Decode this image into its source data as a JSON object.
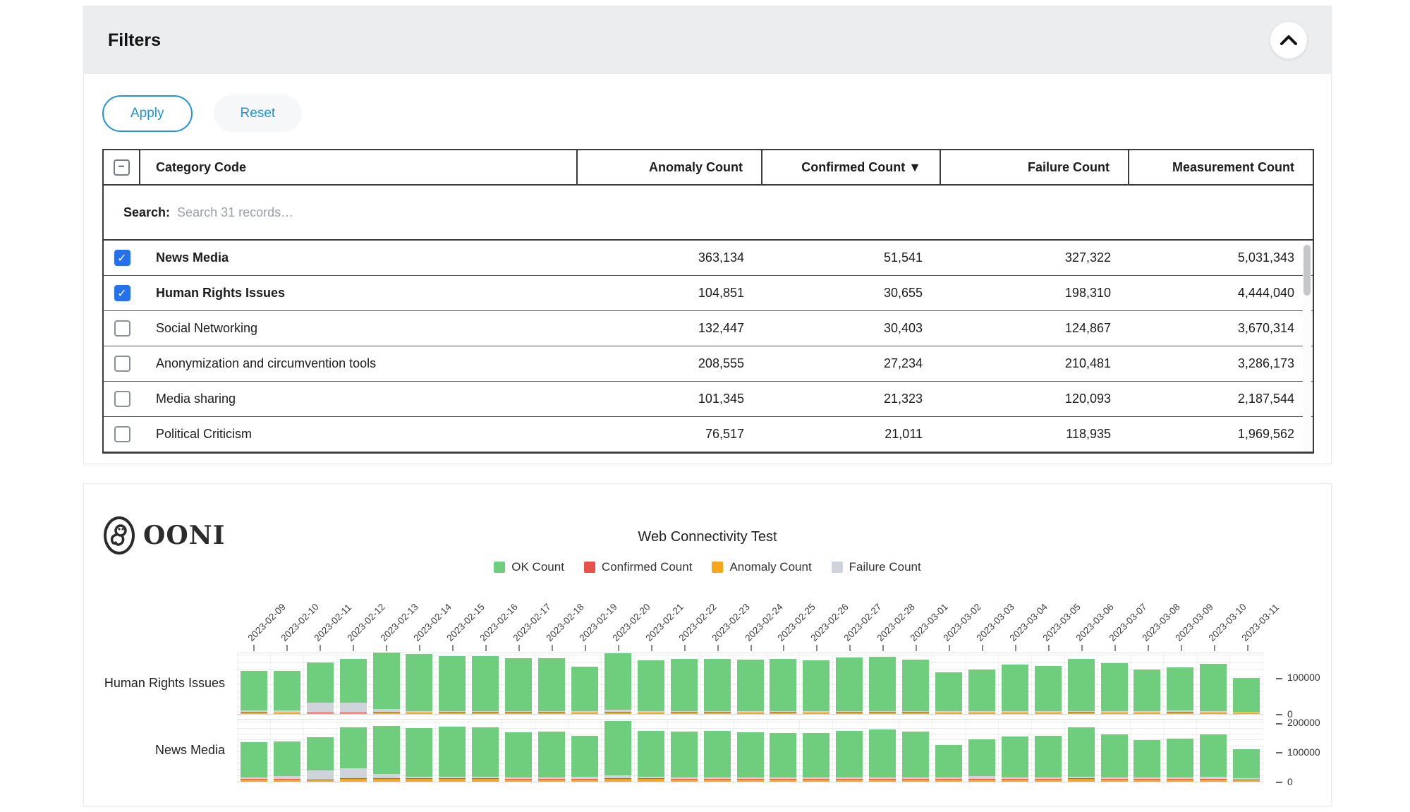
{
  "accent_blue": "#2492d6",
  "filters": {
    "title": "Filters",
    "apply_label": "Apply",
    "reset_label": "Reset",
    "collapse_icon": "chevron-up"
  },
  "table": {
    "search_label": "Search:",
    "search_placeholder": "Search 31 records…",
    "sort_indicator": "▼",
    "columns": [
      {
        "label": "Category Code",
        "sorted": false
      },
      {
        "label": "Anomaly Count",
        "sorted": false
      },
      {
        "label": "Confirmed Count",
        "sorted": true
      },
      {
        "label": "Failure Count",
        "sorted": false
      },
      {
        "label": "Measurement Count",
        "sorted": false
      }
    ],
    "rows": [
      {
        "category": "News Media",
        "checked": true,
        "anomaly": "363,134",
        "confirmed": "51,541",
        "failure": "327,322",
        "measurement": "5,031,343"
      },
      {
        "category": "Human Rights Issues",
        "checked": true,
        "anomaly": "104,851",
        "confirmed": "30,655",
        "failure": "198,310",
        "measurement": "4,444,040"
      },
      {
        "category": "Social Networking",
        "checked": false,
        "anomaly": "132,447",
        "confirmed": "30,403",
        "failure": "124,867",
        "measurement": "3,670,314"
      },
      {
        "category": "Anonymization and circumvention tools",
        "checked": false,
        "anomaly": "208,555",
        "confirmed": "27,234",
        "failure": "210,481",
        "measurement": "3,286,173"
      },
      {
        "category": "Media sharing",
        "checked": false,
        "anomaly": "101,345",
        "confirmed": "21,323",
        "failure": "120,093",
        "measurement": "2,187,544"
      },
      {
        "category": "Political Criticism",
        "checked": false,
        "anomaly": "76,517",
        "confirmed": "21,011",
        "failure": "118,935",
        "measurement": "1,969,562"
      }
    ]
  },
  "chart": {
    "brand": "OONI",
    "title": "Web Connectivity Test",
    "legend": [
      {
        "label": "OK Count",
        "color": "#6fce7e"
      },
      {
        "label": "Confirmed Count",
        "color": "#e8504a"
      },
      {
        "label": "Anomaly Count",
        "color": "#f6a71c"
      },
      {
        "label": "Failure Count",
        "color": "#cfd4db"
      }
    ]
  },
  "chart_data": {
    "type": "bar",
    "stacked": true,
    "layout": "small-multiples-rows",
    "title": "Web Connectivity Test",
    "grid": true,
    "legend_position": "top",
    "categories": [
      "2023-02-09",
      "2023-02-10",
      "2023-02-11",
      "2023-02-12",
      "2023-02-13",
      "2023-02-14",
      "2023-02-15",
      "2023-02-16",
      "2023-02-17",
      "2023-02-18",
      "2023-02-19",
      "2023-02-20",
      "2023-02-21",
      "2023-02-22",
      "2023-02-23",
      "2023-02-24",
      "2023-02-25",
      "2023-02-26",
      "2023-02-27",
      "2023-02-28",
      "2023-03-01",
      "2023-03-02",
      "2023-03-03",
      "2023-03-04",
      "2023-03-05",
      "2023-03-06",
      "2023-03-07",
      "2023-03-08",
      "2023-03-09",
      "2023-03-10",
      "2023-03-11"
    ],
    "charts": [
      {
        "row_label": "Human Rights Issues",
        "ylim": [
          0,
          170000
        ],
        "yticks": [
          0,
          100000
        ],
        "series": [
          {
            "name": "Anomaly Count",
            "color": "#f6a71c",
            "values": [
              3000,
              3000,
              2000,
              2000,
              3000,
              3000,
              3000,
              3000,
              3000,
              3000,
              3000,
              4000,
              3000,
              4000,
              4000,
              3000,
              3000,
              3000,
              3000,
              3000,
              3000,
              3000,
              3000,
              3000,
              3000,
              4000,
              3000,
              3000,
              3000,
              3000,
              3000
            ]
          },
          {
            "name": "Confirmed Count",
            "color": "#e8504a",
            "values": [
              2000,
              1000,
              1000,
              1000,
              2000,
              1000,
              2000,
              2000,
              2000,
              2000,
              1000,
              2000,
              1000,
              1000,
              1000,
              1000,
              2000,
              1000,
              2000,
              2000,
              2000,
              1000,
              1000,
              1000,
              1000,
              1000,
              1000,
              1000,
              2000,
              1000,
              1000
            ]
          },
          {
            "name": "Failure Count",
            "color": "#cfd4db",
            "values": [
              4000,
              6000,
              28000,
              28000,
              8000,
              3000,
              3000,
              3000,
              3000,
              3000,
              3000,
              6000,
              3000,
              3000,
              3000,
              3000,
              3000,
              3000,
              3000,
              3000,
              3000,
              3000,
              3000,
              3000,
              3000,
              3000,
              3000,
              3000,
              4000,
              4000,
              2000
            ]
          },
          {
            "name": "OK Count",
            "color": "#6fce7e",
            "values": [
              108000,
              107000,
              110000,
              120000,
              156000,
              157000,
              151000,
              151000,
              145000,
              145000,
              123000,
              155000,
              139000,
              143000,
              143000,
              142000,
              143000,
              140000,
              146000,
              149000,
              141000,
              107000,
              115000,
              128000,
              124000,
              143000,
              133000,
              114000,
              118000,
              129000,
              92000
            ]
          }
        ]
      },
      {
        "row_label": "News Media",
        "ylim": [
          0,
          215000
        ],
        "yticks": [
          0,
          100000,
          200000
        ],
        "series": [
          {
            "name": "Anomaly Count",
            "color": "#f6a71c",
            "values": [
              8000,
              8000,
              6000,
              9000,
              9000,
              9000,
              9000,
              9000,
              8000,
              8000,
              8000,
              10000,
              9000,
              8000,
              8000,
              8000,
              8000,
              8000,
              8000,
              8000,
              8000,
              7000,
              8000,
              8000,
              8000,
              9000,
              8000,
              8000,
              8000,
              8000,
              6000
            ]
          },
          {
            "name": "Confirmed Count",
            "color": "#e8504a",
            "values": [
              2000,
              2000,
              2000,
              2000,
              2000,
              2000,
              2000,
              2000,
              2000,
              2000,
              2000,
              3000,
              2000,
              2000,
              2000,
              2000,
              2000,
              2000,
              2000,
              2000,
              2000,
              2000,
              2000,
              2000,
              2000,
              2000,
              2000,
              2000,
              2000,
              2000,
              2000
            ]
          },
          {
            "name": "Failure Count",
            "color": "#cfd4db",
            "values": [
              5000,
              8000,
              30000,
              35000,
              15000,
              6000,
              5000,
              5000,
              5000,
              5000,
              6000,
              8000,
              5000,
              5000,
              5000,
              5000,
              5000,
              5000,
              5000,
              5000,
              5000,
              5000,
              8000,
              5000,
              5000,
              5000,
              5000,
              5000,
              5000,
              6000,
              4000
            ]
          },
          {
            "name": "OK Count",
            "color": "#6fce7e",
            "values": [
              118000,
              119000,
              113000,
              139000,
              163000,
              164000,
              171000,
              169000,
              152000,
              154000,
              140000,
              184000,
              157000,
              154000,
              158000,
              152000,
              150000,
              151000,
              156000,
              162000,
              154000,
              111000,
              125000,
              138000,
              141000,
              167000,
              146000,
              125000,
              132000,
              144000,
              98000
            ]
          }
        ]
      }
    ]
  }
}
